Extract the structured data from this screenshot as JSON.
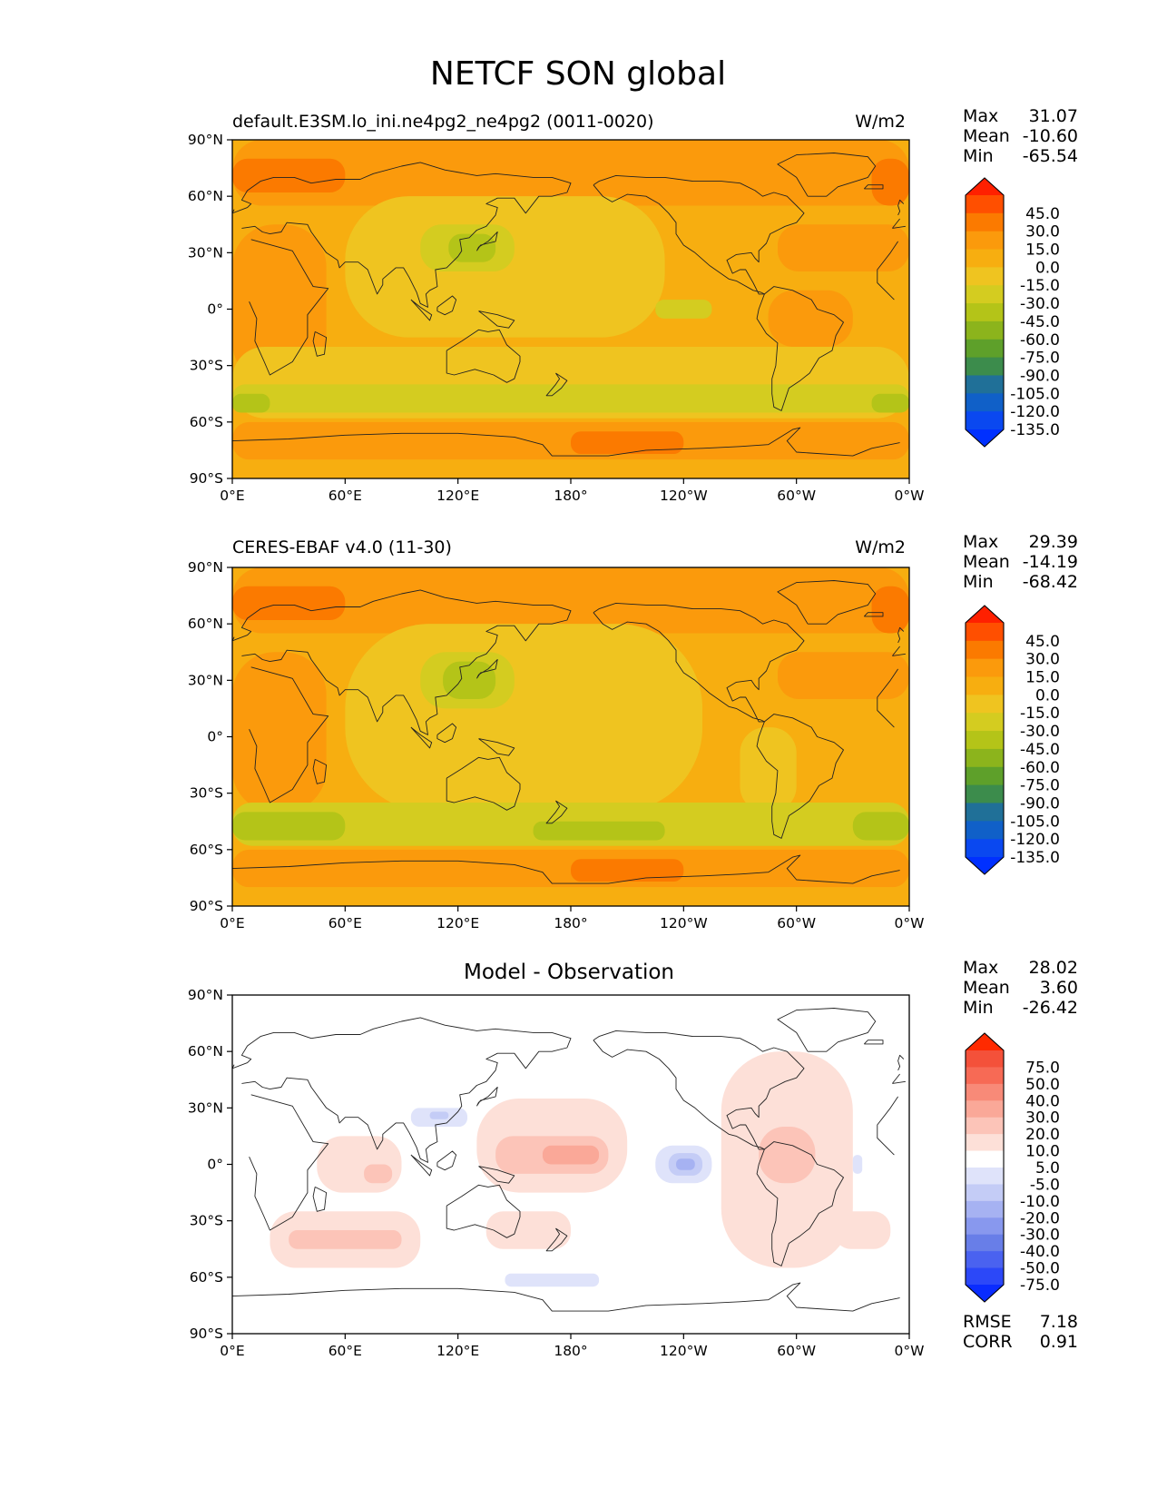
{
  "figure": {
    "title": "NETCF SON global"
  },
  "axes": {
    "lat_ticks": [
      "90°N",
      "60°N",
      "30°N",
      "0°",
      "30°S",
      "60°S",
      "90°S"
    ],
    "lon_ticks": [
      "0°E",
      "60°E",
      "120°E",
      "180°",
      "120°W",
      "60°W",
      "0°W"
    ]
  },
  "panels": [
    {
      "left_title": "default.E3SM.lo_ini.ne4pg2_ne4pg2 (0011-0020)",
      "center_title": "",
      "units": "W/m2",
      "stats": [
        {
          "label": "Max",
          "value": "31.07"
        },
        {
          "label": "Mean",
          "value": "-10.60"
        },
        {
          "label": "Min",
          "value": "-65.54"
        }
      ],
      "colorbar": {
        "labels": [
          "45.0",
          "30.0",
          "15.0",
          "0.0",
          "-15.0",
          "-30.0",
          "-45.0",
          "-60.0",
          "-75.0",
          "-90.0",
          "-105.0",
          "-120.0",
          "-135.0"
        ],
        "colors": [
          "#ff2000",
          "#ff4f00",
          "#fb7a00",
          "#fb9a0c",
          "#f7ae10",
          "#efc420",
          "#d4cc20",
          "#b4c418",
          "#8cb41c",
          "#5ea02a",
          "#3c8c4c",
          "#207098",
          "#1060c8",
          "#0a48f0",
          "#0030ff"
        ]
      },
      "footer_stats": []
    },
    {
      "left_title": "CERES-EBAF v4.0 (11-30)",
      "center_title": "",
      "units": "W/m2",
      "stats": [
        {
          "label": "Max",
          "value": "29.39"
        },
        {
          "label": "Mean",
          "value": "-14.19"
        },
        {
          "label": "Min",
          "value": "-68.42"
        }
      ],
      "colorbar": {
        "labels": [
          "45.0",
          "30.0",
          "15.0",
          "0.0",
          "-15.0",
          "-30.0",
          "-45.0",
          "-60.0",
          "-75.0",
          "-90.0",
          "-105.0",
          "-120.0",
          "-135.0"
        ],
        "colors": [
          "#ff2000",
          "#ff4f00",
          "#fb7a00",
          "#fb9a0c",
          "#f7ae10",
          "#efc420",
          "#d4cc20",
          "#b4c418",
          "#8cb41c",
          "#5ea02a",
          "#3c8c4c",
          "#207098",
          "#1060c8",
          "#0a48f0",
          "#0030ff"
        ]
      },
      "footer_stats": []
    },
    {
      "left_title": "",
      "center_title": "Model - Observation",
      "units": "",
      "stats": [
        {
          "label": "Max",
          "value": "28.02"
        },
        {
          "label": "Mean",
          "value": "3.60"
        },
        {
          "label": "Min",
          "value": "-26.42"
        }
      ],
      "colorbar": {
        "labels": [
          "75.0",
          "50.0",
          "40.0",
          "30.0",
          "20.0",
          "10.0",
          "5.0",
          "-5.0",
          "-10.0",
          "-20.0",
          "-30.0",
          "-40.0",
          "-50.0",
          "-75.0"
        ],
        "colors": [
          "#ff2a00",
          "#f4513a",
          "#f76a55",
          "#f88a78",
          "#faa898",
          "#fcc4b8",
          "#fde0d8",
          "#ffffff",
          "#dfe3fa",
          "#c4ccf6",
          "#a6b2f2",
          "#8898ee",
          "#687ee8",
          "#4a62f0",
          "#2c48f8",
          "#0a2cff"
        ]
      },
      "footer_stats": [
        {
          "label": "RMSE",
          "value": "7.18"
        },
        {
          "label": "CORR",
          "value": "0.91"
        }
      ]
    }
  ],
  "map_fields": [
    {
      "base_color": "#f7ae10",
      "regions": [
        {
          "color": "#fb9a0c",
          "lon": [
            0,
            360
          ],
          "lat": [
            55,
            90
          ]
        },
        {
          "color": "#fb7a00",
          "lon": [
            0,
            60
          ],
          "lat": [
            62,
            80
          ]
        },
        {
          "color": "#fb7a00",
          "lon": [
            340,
            360
          ],
          "lat": [
            55,
            80
          ]
        },
        {
          "color": "#fb9a0c",
          "lon": [
            0,
            50
          ],
          "lat": [
            -40,
            45
          ]
        },
        {
          "color": "#fb9a0c",
          "lon": [
            290,
            360
          ],
          "lat": [
            20,
            45
          ]
        },
        {
          "color": "#fb9a0c",
          "lon": [
            285,
            330
          ],
          "lat": [
            -20,
            10
          ]
        },
        {
          "color": "#efc420",
          "lon": [
            60,
            230
          ],
          "lat": [
            -15,
            60
          ]
        },
        {
          "color": "#d4cc20",
          "lon": [
            100,
            150
          ],
          "lat": [
            20,
            45
          ]
        },
        {
          "color": "#b4c418",
          "lon": [
            115,
            140
          ],
          "lat": [
            25,
            40
          ]
        },
        {
          "color": "#d4cc20",
          "lon": [
            225,
            255
          ],
          "lat": [
            -5,
            5
          ]
        },
        {
          "color": "#efc420",
          "lon": [
            0,
            360
          ],
          "lat": [
            -58,
            -20
          ]
        },
        {
          "color": "#d4cc20",
          "lon": [
            0,
            360
          ],
          "lat": [
            -55,
            -40
          ]
        },
        {
          "color": "#b4c418",
          "lon": [
            0,
            20
          ],
          "lat": [
            -55,
            -45
          ]
        },
        {
          "color": "#b4c418",
          "lon": [
            340,
            360
          ],
          "lat": [
            -55,
            -45
          ]
        },
        {
          "color": "#fb9a0c",
          "lon": [
            0,
            360
          ],
          "lat": [
            -80,
            -60
          ]
        },
        {
          "color": "#fb7a00",
          "lon": [
            180,
            240
          ],
          "lat": [
            -77,
            -65
          ]
        },
        {
          "color": "#f7ae10",
          "lon": [
            0,
            360
          ],
          "lat": [
            -90,
            -80
          ]
        }
      ]
    },
    {
      "base_color": "#f7ae10",
      "regions": [
        {
          "color": "#fb9a0c",
          "lon": [
            0,
            360
          ],
          "lat": [
            55,
            90
          ]
        },
        {
          "color": "#fb7a00",
          "lon": [
            0,
            60
          ],
          "lat": [
            62,
            80
          ]
        },
        {
          "color": "#fb7a00",
          "lon": [
            340,
            360
          ],
          "lat": [
            55,
            80
          ]
        },
        {
          "color": "#fb9a0c",
          "lon": [
            0,
            50
          ],
          "lat": [
            -40,
            45
          ]
        },
        {
          "color": "#fb9a0c",
          "lon": [
            290,
            360
          ],
          "lat": [
            20,
            45
          ]
        },
        {
          "color": "#efc420",
          "lon": [
            60,
            250
          ],
          "lat": [
            -40,
            60
          ]
        },
        {
          "color": "#d4cc20",
          "lon": [
            100,
            150
          ],
          "lat": [
            15,
            45
          ]
        },
        {
          "color": "#b4c418",
          "lon": [
            112,
            140
          ],
          "lat": [
            20,
            40
          ]
        },
        {
          "color": "#efc420",
          "lon": [
            270,
            300
          ],
          "lat": [
            -40,
            5
          ]
        },
        {
          "color": "#d4cc20",
          "lon": [
            0,
            360
          ],
          "lat": [
            -58,
            -35
          ]
        },
        {
          "color": "#b4c418",
          "lon": [
            0,
            60
          ],
          "lat": [
            -55,
            -40
          ]
        },
        {
          "color": "#b4c418",
          "lon": [
            330,
            360
          ],
          "lat": [
            -55,
            -40
          ]
        },
        {
          "color": "#b4c418",
          "lon": [
            160,
            230
          ],
          "lat": [
            -55,
            -45
          ]
        },
        {
          "color": "#fb9a0c",
          "lon": [
            0,
            360
          ],
          "lat": [
            -80,
            -60
          ]
        },
        {
          "color": "#fb7a00",
          "lon": [
            180,
            240
          ],
          "lat": [
            -77,
            -65
          ]
        },
        {
          "color": "#f7ae10",
          "lon": [
            0,
            360
          ],
          "lat": [
            -90,
            -80
          ]
        }
      ]
    },
    {
      "base_color": "#ffffff",
      "regions": [
        {
          "color": "#fde0d8",
          "lon": [
            130,
            210
          ],
          "lat": [
            -15,
            35
          ]
        },
        {
          "color": "#fcc4b8",
          "lon": [
            140,
            200
          ],
          "lat": [
            -5,
            15
          ]
        },
        {
          "color": "#faa898",
          "lon": [
            165,
            195
          ],
          "lat": [
            0,
            10
          ]
        },
        {
          "color": "#fde0d8",
          "lon": [
            45,
            90
          ],
          "lat": [
            -15,
            15
          ]
        },
        {
          "color": "#fcc4b8",
          "lon": [
            70,
            85
          ],
          "lat": [
            -10,
            0
          ]
        },
        {
          "color": "#fde0d8",
          "lon": [
            20,
            100
          ],
          "lat": [
            -55,
            -25
          ]
        },
        {
          "color": "#fcc4b8",
          "lon": [
            30,
            90
          ],
          "lat": [
            -45,
            -35
          ]
        },
        {
          "color": "#fde0d8",
          "lon": [
            135,
            180
          ],
          "lat": [
            -45,
            -25
          ]
        },
        {
          "color": "#fde0d8",
          "lon": [
            260,
            330
          ],
          "lat": [
            -55,
            60
          ]
        },
        {
          "color": "#fcc4b8",
          "lon": [
            280,
            310
          ],
          "lat": [
            -10,
            20
          ]
        },
        {
          "color": "#fde0d8",
          "lon": [
            320,
            350
          ],
          "lat": [
            -45,
            -25
          ]
        },
        {
          "color": "#dfe3fa",
          "lon": [
            225,
            255
          ],
          "lat": [
            -10,
            10
          ]
        },
        {
          "color": "#c4ccf6",
          "lon": [
            232,
            250
          ],
          "lat": [
            -6,
            6
          ]
        },
        {
          "color": "#a6b2f2",
          "lon": [
            236,
            246
          ],
          "lat": [
            -3,
            3
          ]
        },
        {
          "color": "#dfe3fa",
          "lon": [
            95,
            125
          ],
          "lat": [
            20,
            30
          ]
        },
        {
          "color": "#c4ccf6",
          "lon": [
            105,
            115
          ],
          "lat": [
            24,
            28
          ]
        },
        {
          "color": "#dfe3fa",
          "lon": [
            145,
            195
          ],
          "lat": [
            -65,
            -58
          ]
        },
        {
          "color": "#dfe3fa",
          "lon": [
            330,
            335
          ],
          "lat": [
            -5,
            5
          ]
        }
      ]
    }
  ]
}
